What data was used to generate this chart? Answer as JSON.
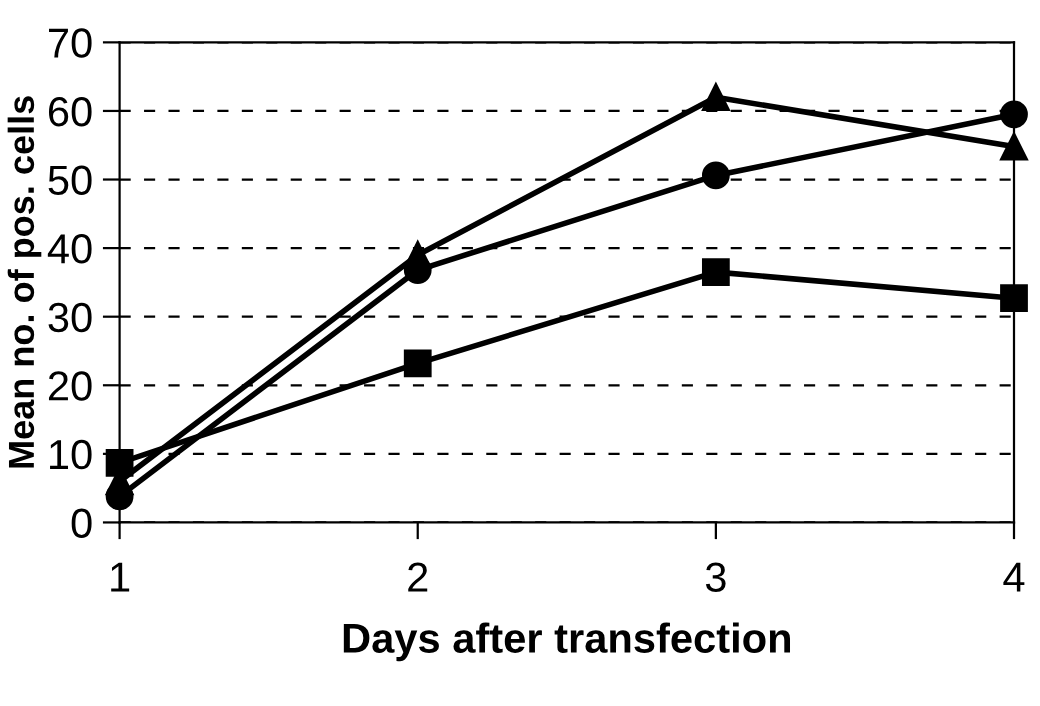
{
  "chart_data": {
    "type": "line",
    "xlabel": "Days after transfection",
    "ylabel": "Mean no. of pos. cells",
    "x": [
      1,
      2,
      3,
      4
    ],
    "xlim": [
      1,
      4
    ],
    "xticks": [
      1,
      2,
      3,
      4
    ],
    "ylim": [
      0,
      70
    ],
    "yticks": [
      0,
      10,
      20,
      30,
      40,
      50,
      60,
      70
    ],
    "grid": "y",
    "line_style": "solid",
    "series": [
      {
        "color": "#000000",
        "marker": "triangle",
        "values": [
          6,
          39,
          62,
          54.8
        ]
      },
      {
        "color": "#000000",
        "marker": "circle",
        "values": [
          3.8,
          36.8,
          50.6,
          59.5
        ]
      },
      {
        "color": "#000000",
        "marker": "square",
        "values": [
          8.7,
          23.2,
          36.5,
          32.7
        ]
      }
    ]
  }
}
